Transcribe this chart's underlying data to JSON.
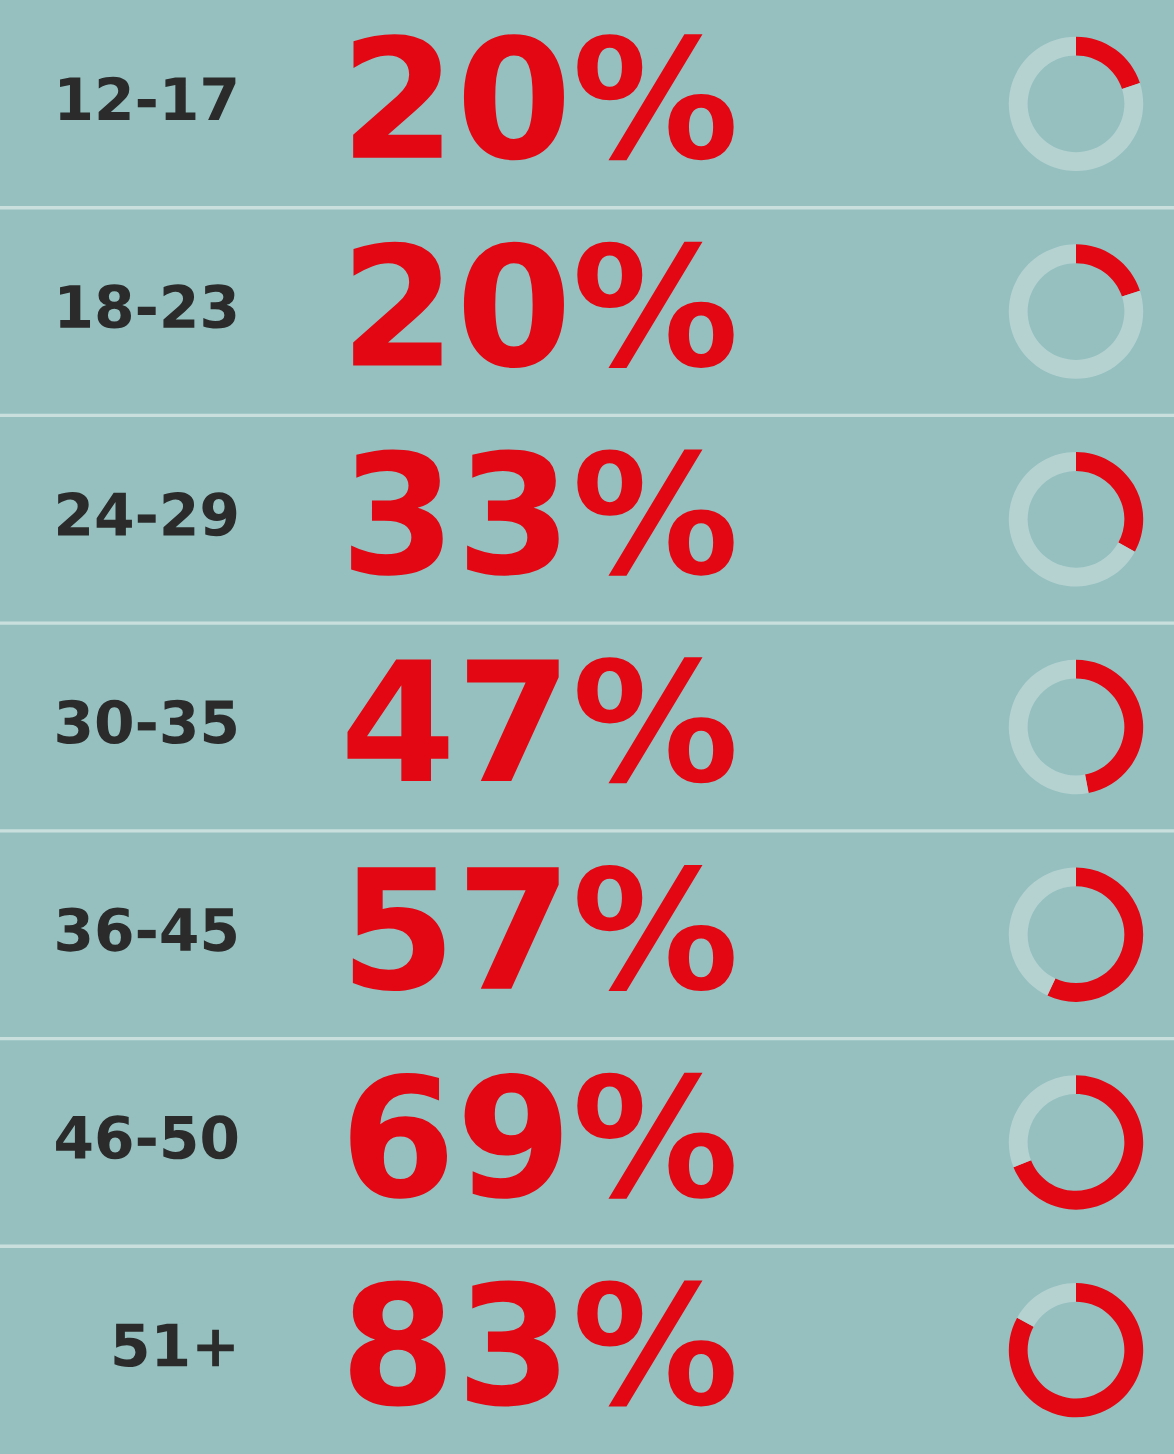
{
  "chart_data": [
    {
      "type": "donut",
      "title": "12-17",
      "categories": [
        null,
        null
      ],
      "values": [
        20,
        80
      ],
      "colors": [
        "#e30613",
        "#b5d2d1"
      ],
      "value_labels": [
        "20%",
        null
      ]
    },
    {
      "type": "donut",
      "title": "18-23",
      "categories": [
        null,
        null
      ],
      "values": [
        20,
        80
      ],
      "colors": [
        "#e30613",
        "#b5d2d1"
      ],
      "value_labels": [
        "20%",
        null
      ]
    },
    {
      "type": "donut",
      "title": "24-29",
      "categories": [
        null,
        null
      ],
      "values": [
        33,
        67
      ],
      "colors": [
        "#e30613",
        "#b5d2d1"
      ],
      "value_labels": [
        "33%",
        null
      ]
    },
    {
      "type": "donut",
      "title": "30-35",
      "categories": [
        null,
        null
      ],
      "values": [
        47,
        53
      ],
      "colors": [
        "#e30613",
        "#b5d2d1"
      ],
      "value_labels": [
        "47%",
        null
      ]
    },
    {
      "type": "donut",
      "title": "36-45",
      "categories": [
        null,
        null
      ],
      "values": [
        57,
        43
      ],
      "colors": [
        "#e30613",
        "#b5d2d1"
      ],
      "value_labels": [
        "57%",
        null
      ]
    },
    {
      "type": "donut",
      "title": "46-50",
      "categories": [
        null,
        null
      ],
      "values": [
        69,
        31
      ],
      "colors": [
        "#e30613",
        "#b5d2d1"
      ],
      "value_labels": [
        "69%",
        null
      ]
    },
    {
      "type": "donut",
      "title": "51+",
      "categories": [
        null,
        null
      ],
      "values": [
        83,
        17
      ],
      "colors": [
        "#e30613",
        "#b5d2d1"
      ],
      "value_labels": [
        "83%",
        null
      ]
    }
  ]
}
